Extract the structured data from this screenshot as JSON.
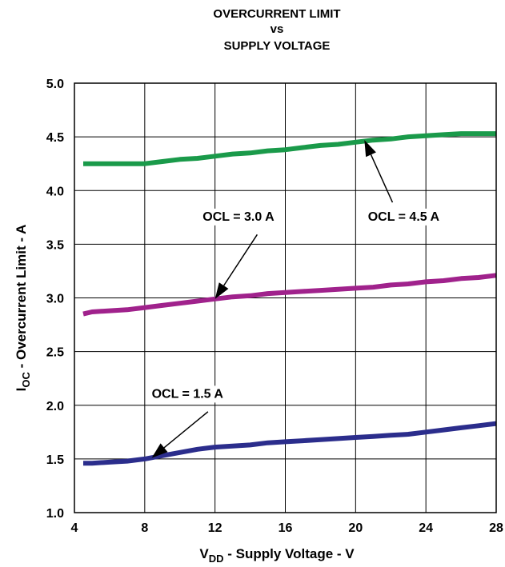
{
  "chart_data": {
    "type": "line",
    "title_lines": [
      "OVERCURRENT LIMIT",
      "vs",
      "SUPPLY VOLTAGE"
    ],
    "xlabel": {
      "main": "V",
      "sub": "DD",
      "rest": " - Supply Voltage - V"
    },
    "ylabel": {
      "main": "I",
      "sub": "OC",
      "rest": " - Overcurrent Limit - A"
    },
    "xlim": [
      4,
      28
    ],
    "ylim": [
      1.0,
      5.0
    ],
    "x_ticks": [
      "4",
      "8",
      "12",
      "16",
      "20",
      "24",
      "28"
    ],
    "y_ticks": [
      "1.0",
      "1.5",
      "2.0",
      "2.5",
      "3.0",
      "3.5",
      "4.0",
      "4.5",
      "5.0"
    ],
    "grid": true,
    "series": [
      {
        "color": "#1a9a4a",
        "x": [
          4.5,
          5,
          6,
          7,
          8,
          9,
          10,
          11,
          12,
          13,
          14,
          15,
          16,
          17,
          18,
          19,
          20,
          21,
          22,
          23,
          24,
          25,
          26,
          27,
          28
        ],
        "y": [
          4.25,
          4.25,
          4.25,
          4.25,
          4.25,
          4.27,
          4.29,
          4.3,
          4.32,
          4.34,
          4.35,
          4.37,
          4.38,
          4.4,
          4.42,
          4.43,
          4.45,
          4.47,
          4.48,
          4.5,
          4.51,
          4.52,
          4.53,
          4.53,
          4.53
        ]
      },
      {
        "color": "#a0228c",
        "x": [
          4.5,
          5,
          6,
          7,
          8,
          9,
          10,
          11,
          12,
          13,
          14,
          15,
          16,
          17,
          18,
          19,
          20,
          21,
          22,
          23,
          24,
          25,
          26,
          27,
          28
        ],
        "y": [
          2.85,
          2.87,
          2.88,
          2.89,
          2.91,
          2.93,
          2.95,
          2.97,
          2.99,
          3.01,
          3.02,
          3.04,
          3.05,
          3.06,
          3.07,
          3.08,
          3.09,
          3.1,
          3.12,
          3.13,
          3.15,
          3.16,
          3.18,
          3.19,
          3.21
        ]
      },
      {
        "color": "#2b2d8c",
        "x": [
          4.5,
          5,
          6,
          7,
          8,
          9,
          10,
          11,
          12,
          13,
          14,
          15,
          16,
          17,
          18,
          19,
          20,
          21,
          22,
          23,
          24,
          25,
          26,
          27,
          28
        ],
        "y": [
          1.46,
          1.46,
          1.47,
          1.48,
          1.5,
          1.53,
          1.56,
          1.59,
          1.61,
          1.62,
          1.63,
          1.65,
          1.66,
          1.67,
          1.68,
          1.69,
          1.7,
          1.71,
          1.72,
          1.73,
          1.75,
          1.77,
          1.79,
          1.81,
          1.83
        ]
      }
    ],
    "annotations": [
      {
        "text": "OCL = 4.5 A",
        "point": [
          20.5,
          4.47
        ],
        "anchor": [
          20.7,
          3.72
        ],
        "tail": [
          22.1,
          3.89
        ]
      },
      {
        "text": "OCL = 3.0 A",
        "point": [
          12.0,
          2.99
        ],
        "anchor": [
          11.3,
          3.72
        ],
        "tail": [
          14.4,
          3.59
        ]
      },
      {
        "text": "OCL = 1.5 A",
        "point": [
          8.4,
          1.51
        ],
        "anchor": [
          8.4,
          2.07
        ],
        "tail": [
          11.6,
          1.94
        ]
      }
    ]
  }
}
